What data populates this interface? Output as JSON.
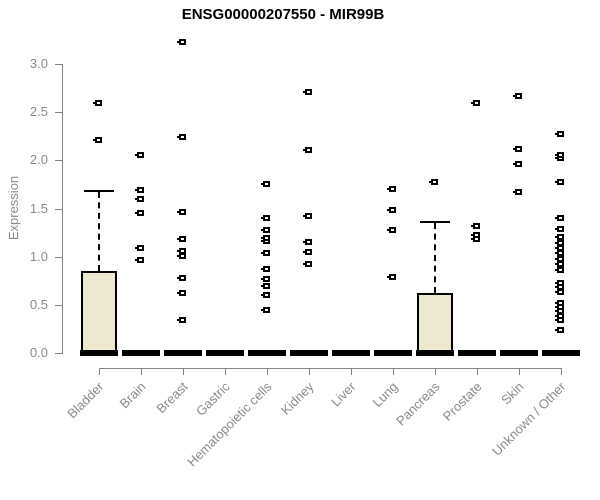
{
  "chart_data": {
    "type": "boxplot",
    "title": "ENSG00000207550 - MIR99B",
    "ylabel": "Expression",
    "yticks": [
      "0.0",
      "0.5",
      "1.0",
      "1.5",
      "2.0",
      "2.5",
      "3.0"
    ],
    "ylim": [
      0,
      3.3
    ],
    "grid": false,
    "legend": "none",
    "categories": [
      "Bladder",
      "Brain",
      "Breast",
      "Gastric",
      "Hematopoietic cells",
      "Kidney",
      "Liver",
      "Lung",
      "Pancreas",
      "Prostate",
      "Skin",
      "Unknown / Other"
    ],
    "boxes": [
      {
        "category": "Bladder",
        "q1": 0,
        "median": 0,
        "q3": 0.85,
        "whisker_low": 0,
        "whisker_high": 1.67,
        "outliers": [
          2.21,
          2.59
        ]
      },
      {
        "category": "Brain",
        "q1": 0,
        "median": 0,
        "q3": 0,
        "whisker_low": 0,
        "whisker_high": 0,
        "outliers": [
          0.97,
          1.09,
          1.45,
          1.6,
          1.69,
          2.06
        ]
      },
      {
        "category": "Breast",
        "q1": 0,
        "median": 0,
        "q3": 0,
        "whisker_low": 0,
        "whisker_high": 0,
        "outliers": [
          0.34,
          0.62,
          0.78,
          1.01,
          1.06,
          1.18,
          1.46,
          2.24,
          3.23
        ]
      },
      {
        "category": "Gastric",
        "q1": 0,
        "median": 0,
        "q3": 0,
        "whisker_low": 0,
        "whisker_high": 0,
        "outliers": []
      },
      {
        "category": "Hematopoietic cells",
        "q1": 0,
        "median": 0,
        "q3": 0,
        "whisker_low": 0,
        "whisker_high": 0,
        "outliers": [
          0.45,
          0.6,
          0.7,
          0.77,
          0.87,
          1.04,
          1.16,
          1.19,
          1.28,
          1.4,
          1.75
        ]
      },
      {
        "category": "Kidney",
        "q1": 0,
        "median": 0,
        "q3": 0,
        "whisker_low": 0,
        "whisker_high": 0,
        "outliers": [
          0.92,
          1.05,
          1.15,
          1.42,
          2.11,
          2.71
        ]
      },
      {
        "category": "Liver",
        "q1": 0,
        "median": 0,
        "q3": 0,
        "whisker_low": 0,
        "whisker_high": 0,
        "outliers": []
      },
      {
        "category": "Lung",
        "q1": 0,
        "median": 0,
        "q3": 0,
        "whisker_low": 0,
        "whisker_high": 0,
        "outliers": [
          0.79,
          1.28,
          1.48,
          1.7
        ]
      },
      {
        "category": "Pancreas",
        "q1": 0,
        "median": 0,
        "q3": 0.62,
        "whisker_low": 0,
        "whisker_high": 1.35,
        "outliers": [
          1.77
        ]
      },
      {
        "category": "Prostate",
        "q1": 0,
        "median": 0,
        "q3": 0,
        "whisker_low": 0,
        "whisker_high": 0,
        "outliers": [
          1.18,
          1.22,
          1.32,
          2.6
        ]
      },
      {
        "category": "Skin",
        "q1": 0,
        "median": 0,
        "q3": 0,
        "whisker_low": 0,
        "whisker_high": 0,
        "outliers": [
          1.67,
          1.96,
          2.12,
          2.67
        ]
      },
      {
        "category": "Unknown / Other",
        "q1": 0,
        "median": 0,
        "q3": 0,
        "whisker_low": 0,
        "whisker_high": 0,
        "outliers": [
          0.24,
          0.34,
          0.38,
          0.44,
          0.48,
          0.52,
          0.63,
          0.69,
          0.73,
          0.86,
          0.92,
          0.98,
          1.04,
          1.09,
          1.14,
          1.2,
          1.29,
          1.4,
          1.77,
          2.02,
          2.06,
          2.27
        ]
      }
    ],
    "colors": {
      "box_fill": "#EDE8CF",
      "box_border": "#000000",
      "median": "#000000",
      "whisker": "#000000",
      "outlier": "#000000",
      "axis": "#848484",
      "tick_label": "#8a8a8a",
      "title": "#000000"
    }
  }
}
